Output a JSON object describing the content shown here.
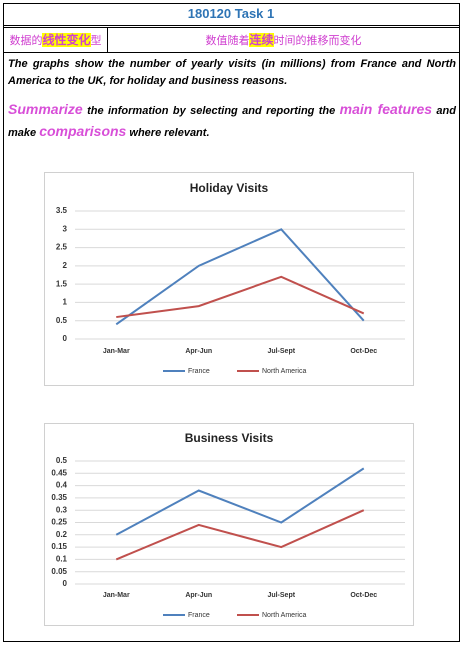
{
  "header": {
    "title": "180120 Task 1",
    "left": [
      "数据的",
      "线性变化",
      "型"
    ],
    "right": [
      "数值随着",
      "连续",
      "时间的推移而变化"
    ]
  },
  "prompt": {
    "intro": "The graphs show the number of yearly visits (in millions) from France and North America to the UK, for holiday and business reasons.",
    "task": [
      "Summarize",
      " the information by selecting and reporting the ",
      "main features",
      " and make ",
      "comparisons",
      " where relevant."
    ]
  },
  "charts": [
    {
      "type": "line",
      "title": "Holiday Visits",
      "categories": [
        "Jan-Mar",
        "Apr-Jun",
        "Jul-Sept",
        "Oct-Dec"
      ],
      "series": [
        {
          "name": "France",
          "color": "#4f81bd",
          "values": [
            0.4,
            2,
            3,
            0.5
          ]
        },
        {
          "name": "North America",
          "color": "#c0504d",
          "values": [
            0.6,
            0.9,
            1.7,
            0.7
          ]
        }
      ],
      "ylim": [
        0,
        3.5
      ],
      "yticks": [
        0,
        0.5,
        1,
        1.5,
        2,
        2.5,
        3,
        3.5
      ],
      "grid": true,
      "legend": "bottom"
    },
    {
      "type": "line",
      "title": "Business Visits",
      "categories": [
        "Jan-Mar",
        "Apr-Jun",
        "Jul-Sept",
        "Oct-Dec"
      ],
      "series": [
        {
          "name": "France",
          "color": "#4f81bd",
          "values": [
            0.2,
            0.38,
            0.25,
            0.47
          ]
        },
        {
          "name": "North America",
          "color": "#c0504d",
          "values": [
            0.1,
            0.24,
            0.15,
            0.3
          ]
        }
      ],
      "ylim": [
        0,
        0.5
      ],
      "yticks": [
        0,
        0.05,
        0.1,
        0.15,
        0.2,
        0.25,
        0.3,
        0.35,
        0.4,
        0.45,
        0.5
      ],
      "grid": true,
      "legend": "bottom"
    }
  ]
}
